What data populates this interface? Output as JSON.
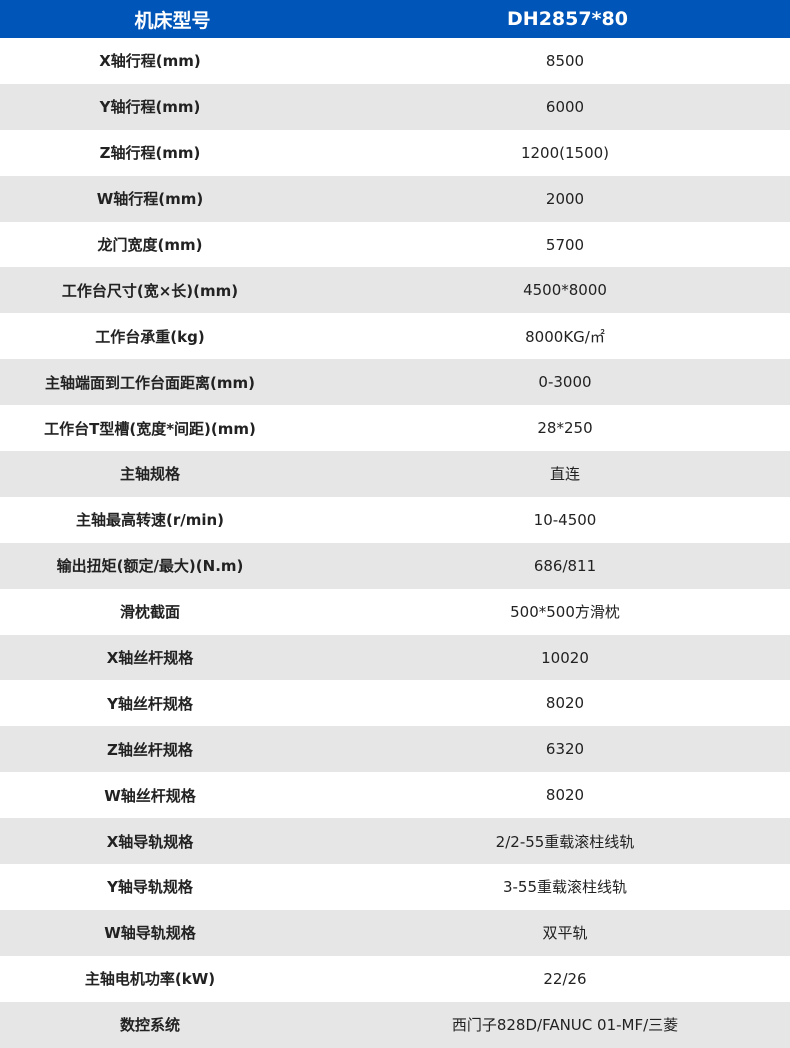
{
  "header": {
    "label": "机床型号",
    "value": "DH2857*80"
  },
  "colors": {
    "header_bg": "#0055b8",
    "stripe": "#e6e6e6"
  },
  "rows": [
    {
      "label": "X轴行程(mm)",
      "value": "8500"
    },
    {
      "label": "Y轴行程(mm)",
      "value": "6000"
    },
    {
      "label": "Z轴行程(mm)",
      "value": "1200(1500)"
    },
    {
      "label": "W轴行程(mm)",
      "value": "2000"
    },
    {
      "label": "龙门宽度(mm)",
      "value": "5700"
    },
    {
      "label": "工作台尺寸(宽×长)(mm)",
      "value": "4500*8000"
    },
    {
      "label": "工作台承重(kg)",
      "value": "8000KG/㎡"
    },
    {
      "label": "主轴端面到工作台面距离(mm)",
      "value": "0-3000"
    },
    {
      "label": "工作台T型槽(宽度*间距)(mm)",
      "value": "28*250"
    },
    {
      "label": "主轴规格",
      "value": "直连"
    },
    {
      "label": "主轴最高转速(r/min)",
      "value": "10-4500"
    },
    {
      "label": "输出扭矩(额定/最大)(N.m)",
      "value": "686/811"
    },
    {
      "label": "滑枕截面",
      "value": "500*500方滑枕"
    },
    {
      "label": "X轴丝杆规格",
      "value": "10020"
    },
    {
      "label": "Y轴丝杆规格",
      "value": "8020"
    },
    {
      "label": "Z轴丝杆规格",
      "value": "6320"
    },
    {
      "label": "W轴丝杆规格",
      "value": "8020"
    },
    {
      "label": "X轴导轨规格",
      "value": "2/2-55重载滚柱线轨"
    },
    {
      "label": "Y轴导轨规格",
      "value": "3-55重载滚柱线轨"
    },
    {
      "label": "W轴导轨规格",
      "value": "双平轨"
    },
    {
      "label": "主轴电机功率(kW)",
      "value": "22/26"
    },
    {
      "label": "数控系统",
      "value": "西门子828D/FANUC 01-MF/三菱"
    }
  ]
}
